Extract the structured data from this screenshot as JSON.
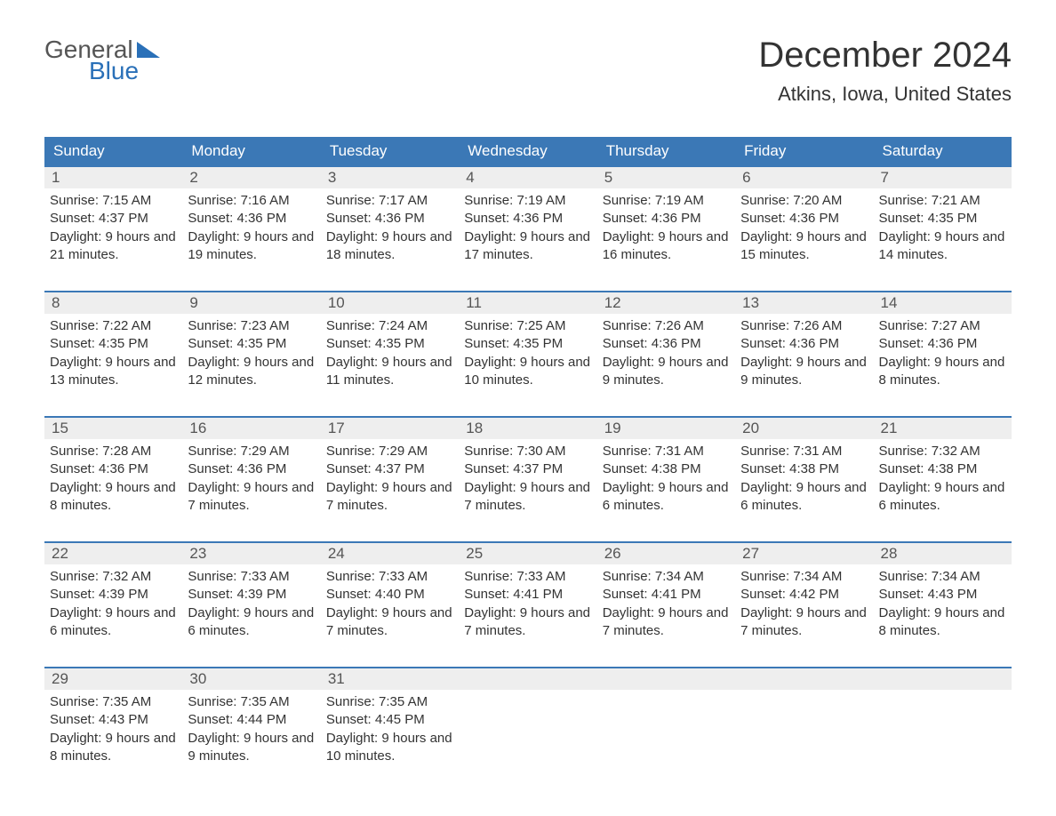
{
  "logo": {
    "text_top": "General",
    "text_bottom": "Blue",
    "icon_color": "#2a70b8"
  },
  "title": "December 2024",
  "location": "Atkins, Iowa, United States",
  "colors": {
    "header_bg": "#3b78b6",
    "header_text": "#ffffff",
    "daynum_bg": "#eeeeee",
    "daynum_text": "#555555",
    "border": "#3b78b6",
    "body_text": "#333333",
    "page_bg": "#ffffff"
  },
  "day_headers": [
    "Sunday",
    "Monday",
    "Tuesday",
    "Wednesday",
    "Thursday",
    "Friday",
    "Saturday"
  ],
  "weeks": [
    [
      {
        "n": "1",
        "sunrise": "7:15 AM",
        "sunset": "4:37 PM",
        "daylight": "9 hours and 21 minutes."
      },
      {
        "n": "2",
        "sunrise": "7:16 AM",
        "sunset": "4:36 PM",
        "daylight": "9 hours and 19 minutes."
      },
      {
        "n": "3",
        "sunrise": "7:17 AM",
        "sunset": "4:36 PM",
        "daylight": "9 hours and 18 minutes."
      },
      {
        "n": "4",
        "sunrise": "7:19 AM",
        "sunset": "4:36 PM",
        "daylight": "9 hours and 17 minutes."
      },
      {
        "n": "5",
        "sunrise": "7:19 AM",
        "sunset": "4:36 PM",
        "daylight": "9 hours and 16 minutes."
      },
      {
        "n": "6",
        "sunrise": "7:20 AM",
        "sunset": "4:36 PM",
        "daylight": "9 hours and 15 minutes."
      },
      {
        "n": "7",
        "sunrise": "7:21 AM",
        "sunset": "4:35 PM",
        "daylight": "9 hours and 14 minutes."
      }
    ],
    [
      {
        "n": "8",
        "sunrise": "7:22 AM",
        "sunset": "4:35 PM",
        "daylight": "9 hours and 13 minutes."
      },
      {
        "n": "9",
        "sunrise": "7:23 AM",
        "sunset": "4:35 PM",
        "daylight": "9 hours and 12 minutes."
      },
      {
        "n": "10",
        "sunrise": "7:24 AM",
        "sunset": "4:35 PM",
        "daylight": "9 hours and 11 minutes."
      },
      {
        "n": "11",
        "sunrise": "7:25 AM",
        "sunset": "4:35 PM",
        "daylight": "9 hours and 10 minutes."
      },
      {
        "n": "12",
        "sunrise": "7:26 AM",
        "sunset": "4:36 PM",
        "daylight": "9 hours and 9 minutes."
      },
      {
        "n": "13",
        "sunrise": "7:26 AM",
        "sunset": "4:36 PM",
        "daylight": "9 hours and 9 minutes."
      },
      {
        "n": "14",
        "sunrise": "7:27 AM",
        "sunset": "4:36 PM",
        "daylight": "9 hours and 8 minutes."
      }
    ],
    [
      {
        "n": "15",
        "sunrise": "7:28 AM",
        "sunset": "4:36 PM",
        "daylight": "9 hours and 8 minutes."
      },
      {
        "n": "16",
        "sunrise": "7:29 AM",
        "sunset": "4:36 PM",
        "daylight": "9 hours and 7 minutes."
      },
      {
        "n": "17",
        "sunrise": "7:29 AM",
        "sunset": "4:37 PM",
        "daylight": "9 hours and 7 minutes."
      },
      {
        "n": "18",
        "sunrise": "7:30 AM",
        "sunset": "4:37 PM",
        "daylight": "9 hours and 7 minutes."
      },
      {
        "n": "19",
        "sunrise": "7:31 AM",
        "sunset": "4:38 PM",
        "daylight": "9 hours and 6 minutes."
      },
      {
        "n": "20",
        "sunrise": "7:31 AM",
        "sunset": "4:38 PM",
        "daylight": "9 hours and 6 minutes."
      },
      {
        "n": "21",
        "sunrise": "7:32 AM",
        "sunset": "4:38 PM",
        "daylight": "9 hours and 6 minutes."
      }
    ],
    [
      {
        "n": "22",
        "sunrise": "7:32 AM",
        "sunset": "4:39 PM",
        "daylight": "9 hours and 6 minutes."
      },
      {
        "n": "23",
        "sunrise": "7:33 AM",
        "sunset": "4:39 PM",
        "daylight": "9 hours and 6 minutes."
      },
      {
        "n": "24",
        "sunrise": "7:33 AM",
        "sunset": "4:40 PM",
        "daylight": "9 hours and 7 minutes."
      },
      {
        "n": "25",
        "sunrise": "7:33 AM",
        "sunset": "4:41 PM",
        "daylight": "9 hours and 7 minutes."
      },
      {
        "n": "26",
        "sunrise": "7:34 AM",
        "sunset": "4:41 PM",
        "daylight": "9 hours and 7 minutes."
      },
      {
        "n": "27",
        "sunrise": "7:34 AM",
        "sunset": "4:42 PM",
        "daylight": "9 hours and 7 minutes."
      },
      {
        "n": "28",
        "sunrise": "7:34 AM",
        "sunset": "4:43 PM",
        "daylight": "9 hours and 8 minutes."
      }
    ],
    [
      {
        "n": "29",
        "sunrise": "7:35 AM",
        "sunset": "4:43 PM",
        "daylight": "9 hours and 8 minutes."
      },
      {
        "n": "30",
        "sunrise": "7:35 AM",
        "sunset": "4:44 PM",
        "daylight": "9 hours and 9 minutes."
      },
      {
        "n": "31",
        "sunrise": "7:35 AM",
        "sunset": "4:45 PM",
        "daylight": "9 hours and 10 minutes."
      },
      null,
      null,
      null,
      null
    ]
  ],
  "labels": {
    "sunrise": "Sunrise:",
    "sunset": "Sunset:",
    "daylight": "Daylight:"
  }
}
